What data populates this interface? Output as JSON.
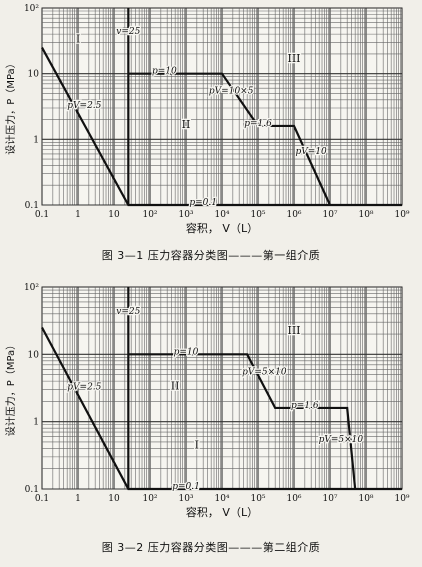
{
  "chart_data": [
    {
      "type": "line",
      "xscale": "log",
      "yscale": "log",
      "xlim": [
        0.1,
        1000000000
      ],
      "ylim": [
        0.1,
        100
      ],
      "xticks": [
        "0.1",
        "1",
        "10",
        "10²",
        "10³",
        "10⁴",
        "10⁵",
        "10⁶",
        "10⁷",
        "10⁸",
        "10⁹"
      ],
      "yticks": [
        "0.1",
        "1",
        "10",
        "10²"
      ],
      "xlabel": "容积， V（L）",
      "ylabel": "设计压力，P（MPa）",
      "caption": "图 3—1  压力容器分类图———第一组介质",
      "grid": true,
      "lines": [
        {
          "label": "",
          "points": [
            [
              0.1,
              25
            ],
            [
              25,
              0.1
            ],
            [
              1000000000,
              0.1
            ]
          ]
        },
        {
          "label": "v=25",
          "points": [
            [
              25,
              0.1
            ],
            [
              25,
              100
            ]
          ]
        },
        {
          "label": "",
          "points": [
            [
              25,
              10
            ],
            [
              10000,
              10
            ],
            [
              100000,
              1.6
            ],
            [
              1000000,
              1.6
            ],
            [
              10000000,
              0.1
            ]
          ]
        }
      ],
      "annotations": [
        {
          "text": "I",
          "x": 1,
          "y": 30
        },
        {
          "text": "II",
          "x": 1000,
          "y": 1.5
        },
        {
          "text": "III",
          "x": 1000000,
          "y": 15
        },
        {
          "text": "v=25",
          "x": 25,
          "y": 40
        },
        {
          "text": "p=10",
          "x": 250,
          "y": 10
        },
        {
          "text": "pV=2.5",
          "x": 1.5,
          "y": 3
        },
        {
          "text": "pV=10×5",
          "x": 18000,
          "y": 5
        },
        {
          "text": "p=1.6",
          "x": 100000,
          "y": 1.6
        },
        {
          "text": "pV=10",
          "x": 3000000,
          "y": 0.6
        },
        {
          "text": "p=0.1",
          "x": 3000,
          "y": 0.1
        }
      ]
    },
    {
      "type": "line",
      "xscale": "log",
      "yscale": "log",
      "xlim": [
        0.1,
        1000000000
      ],
      "ylim": [
        0.1,
        100
      ],
      "xticks": [
        "0.1",
        "1",
        "10",
        "10²",
        "10³",
        "10⁴",
        "10⁵",
        "10⁶",
        "10⁷",
        "10⁸",
        "10⁹"
      ],
      "yticks": [
        "0.1",
        "1",
        "10",
        "10²"
      ],
      "xlabel": "容积， V（L）",
      "ylabel": "设计压力，P（MPa）",
      "caption": "图 3—2  压力容器分类图———第二组介质",
      "grid": true,
      "lines": [
        {
          "label": "",
          "points": [
            [
              0.1,
              25
            ],
            [
              25,
              0.1
            ],
            [
              1000000000,
              0.1
            ]
          ]
        },
        {
          "label": "v=25",
          "points": [
            [
              25,
              0.1
            ],
            [
              25,
              100
            ]
          ]
        },
        {
          "label": "",
          "points": [
            [
              25,
              10
            ],
            [
              50000,
              10
            ],
            [
              300000,
              1.6
            ],
            [
              30000000,
              1.6
            ],
            [
              50000000,
              0.1
            ]
          ]
        }
      ],
      "annotations": [
        {
          "text": "I",
          "x": 2000,
          "y": 0.4
        },
        {
          "text": "II",
          "x": 500,
          "y": 3
        },
        {
          "text": "III",
          "x": 1000000,
          "y": 20
        },
        {
          "text": "v=25",
          "x": 25,
          "y": 40
        },
        {
          "text": "p=10",
          "x": 1000,
          "y": 10
        },
        {
          "text": "pV=2.5",
          "x": 1.5,
          "y": 3
        },
        {
          "text": "pV=5×10",
          "x": 150000,
          "y": 5
        },
        {
          "text": "p=1.6",
          "x": 2000000,
          "y": 1.6
        },
        {
          "text": "pV=5×10",
          "x": 20000000,
          "y": 0.5
        },
        {
          "text": "p=0.1",
          "x": 1000,
          "y": 0.1
        }
      ]
    }
  ]
}
